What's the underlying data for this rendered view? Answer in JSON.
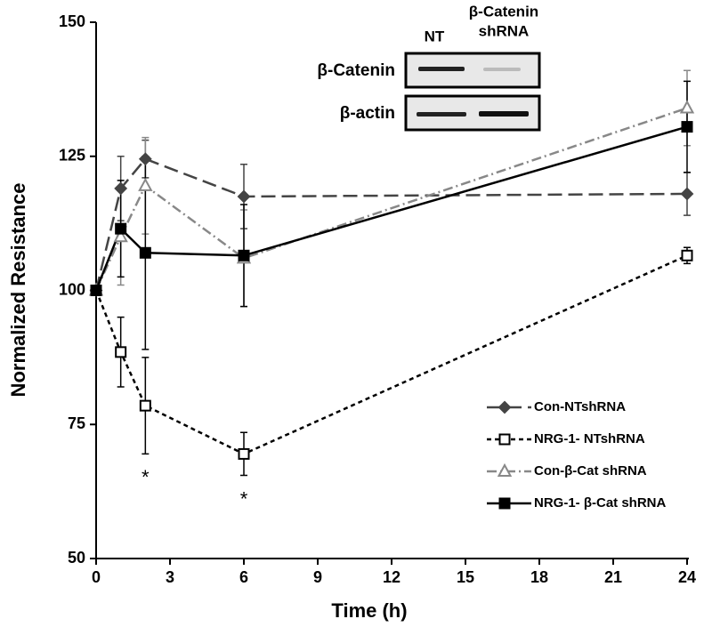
{
  "chart_data": {
    "type": "line",
    "x_label": "Time (h)",
    "y_label": "Normalized Resistance",
    "xlim": [
      0,
      24
    ],
    "xticks": [
      0,
      3,
      6,
      9,
      12,
      15,
      18,
      21,
      24
    ],
    "ylim": [
      50,
      150
    ],
    "yticks": [
      50,
      75,
      100,
      125,
      150
    ],
    "x": [
      0,
      1,
      2,
      6,
      24
    ],
    "series": [
      {
        "name": "Con-NTshRNA",
        "color": "#444444",
        "marker": "diamond",
        "filled": true,
        "dash": "16,7",
        "values": [
          100,
          119,
          124.5,
          117.5,
          118
        ],
        "errors": [
          0,
          6,
          3.5,
          6,
          4
        ]
      },
      {
        "name": "NRG-1- NTshRNA",
        "color": "#000000",
        "marker": "square",
        "filled": false,
        "dash": "5,4",
        "values": [
          100,
          88.5,
          78.5,
          69.5,
          106.5
        ],
        "errors": [
          0,
          6.5,
          9,
          4,
          1.5
        ]
      },
      {
        "name": "Con-β-Cat shRNA",
        "color": "#888888",
        "marker": "triangle",
        "filled": false,
        "dash": "11,4,2,4",
        "values": [
          100,
          110,
          119.5,
          106,
          134
        ],
        "errors": [
          0,
          9,
          9,
          9,
          7
        ]
      },
      {
        "name": "NRG-1- β-Cat shRNA",
        "color": "#000000",
        "marker": "square",
        "filled": true,
        "dash": "none",
        "values": [
          100,
          111.5,
          107,
          106.5,
          130.5
        ],
        "errors": [
          0,
          9,
          18,
          9.5,
          8.5
        ]
      }
    ],
    "annotations": [
      {
        "text": "*",
        "x": 2
      },
      {
        "text": "*",
        "x": 6
      }
    ],
    "inset": {
      "columns": [
        "NT",
        [
          "β-Catenin",
          "shRNA"
        ]
      ],
      "rows": [
        "β-Catenin",
        "β-actin"
      ]
    }
  }
}
